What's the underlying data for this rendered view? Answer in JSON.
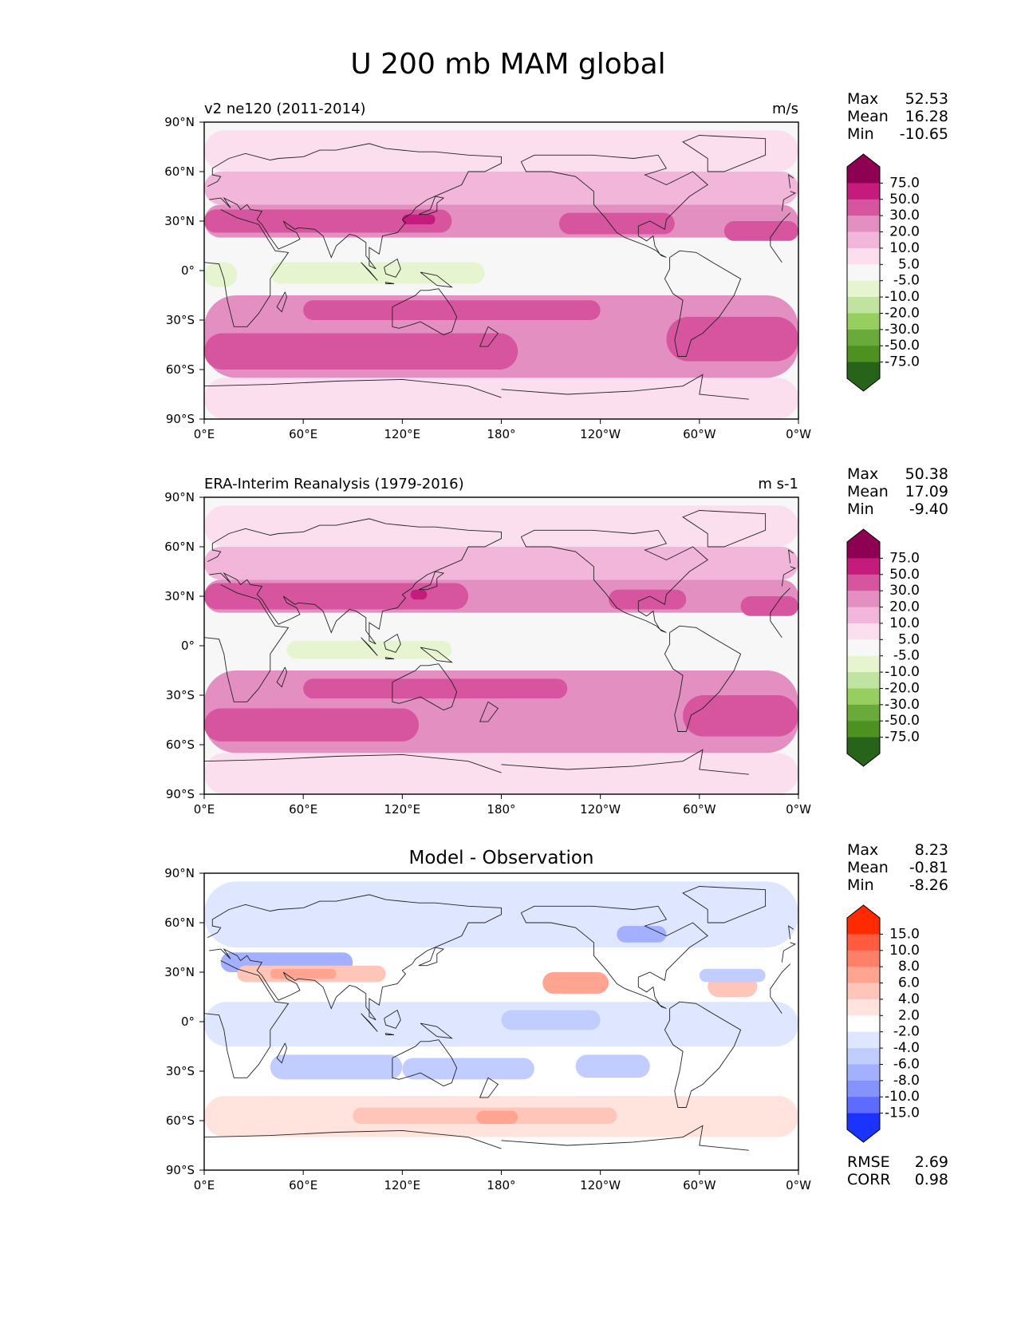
{
  "title": "U 200 mb MAM global",
  "chart_data": [
    {
      "type": "heatmap",
      "panel": "model",
      "left_title": "v2 ne120 (2011-2014)",
      "center_title": "",
      "units": "m/s",
      "stats": [
        {
          "label": "Max",
          "value": "52.53"
        },
        {
          "label": "Mean",
          "value": "16.28"
        },
        {
          "label": "Min",
          "value": "-10.65"
        }
      ],
      "colorbar_levels": [
        "75.0",
        "50.0",
        "30.0",
        "20.0",
        "10.0",
        "5.0",
        "-5.0",
        "-10.0",
        "-20.0",
        "-30.0",
        "-50.0",
        "-75.0"
      ],
      "colorbar_colors": [
        "#8e0152",
        "#c51b7d",
        "#d6559e",
        "#e48fc1",
        "#f1b6da",
        "#fbdfef",
        "#f7f7f7",
        "#e6f5d0",
        "#c0e3a0",
        "#96ce5f",
        "#6aaa3a",
        "#4d9221",
        "#276419"
      ],
      "field": [
        {
          "lat_min": 60,
          "lat_max": 85,
          "lon_min": 0,
          "lon_max": 360,
          "value": 8
        },
        {
          "lat_min": 40,
          "lat_max": 60,
          "lon_min": 0,
          "lon_max": 360,
          "value": 15
        },
        {
          "lat_min": 20,
          "lat_max": 40,
          "lon_min": 0,
          "lon_max": 360,
          "value": 25
        },
        {
          "lat_min": 23,
          "lat_max": 37,
          "lon_min": 0,
          "lon_max": 150,
          "value": 35
        },
        {
          "lat_min": 28,
          "lat_max": 34,
          "lon_min": 120,
          "lon_max": 140,
          "value": 55
        },
        {
          "lat_min": 22,
          "lat_max": 35,
          "lon_min": 215,
          "lon_max": 285,
          "value": 35
        },
        {
          "lat_min": 18,
          "lat_max": 30,
          "lon_min": 315,
          "lon_max": 360,
          "value": 35
        },
        {
          "lat_min": -5,
          "lat_max": 8,
          "lon_min": 0,
          "lon_max": 360,
          "value": 0
        },
        {
          "lat_min": -8,
          "lat_max": 5,
          "lon_min": 40,
          "lon_max": 170,
          "value": -7
        },
        {
          "lat_min": -10,
          "lat_max": 5,
          "lon_min": 0,
          "lon_max": 20,
          "value": -7
        },
        {
          "lat_min": -65,
          "lat_max": -15,
          "lon_min": 0,
          "lon_max": 360,
          "value": 25
        },
        {
          "lat_min": -30,
          "lat_max": -18,
          "lon_min": 60,
          "lon_max": 240,
          "value": 35
        },
        {
          "lat_min": -55,
          "lat_max": -28,
          "lon_min": 280,
          "lon_max": 360,
          "value": 35
        },
        {
          "lat_min": -60,
          "lat_max": -38,
          "lon_min": 0,
          "lon_max": 190,
          "value": 35
        },
        {
          "lat_min": -90,
          "lat_max": -65,
          "lon_min": 0,
          "lon_max": 360,
          "value": 8
        }
      ]
    },
    {
      "type": "heatmap",
      "panel": "observation",
      "left_title": "ERA-Interim Reanalysis (1979-2016)",
      "center_title": "",
      "units": "m s-1",
      "stats": [
        {
          "label": "Max",
          "value": "50.38"
        },
        {
          "label": "Mean",
          "value": "17.09"
        },
        {
          "label": "Min",
          "value": "-9.40"
        }
      ],
      "colorbar_levels": [
        "75.0",
        "50.0",
        "30.0",
        "20.0",
        "10.0",
        "5.0",
        "-5.0",
        "-10.0",
        "-20.0",
        "-30.0",
        "-50.0",
        "-75.0"
      ],
      "colorbar_colors": [
        "#8e0152",
        "#c51b7d",
        "#d6559e",
        "#e48fc1",
        "#f1b6da",
        "#fbdfef",
        "#f7f7f7",
        "#e6f5d0",
        "#c0e3a0",
        "#96ce5f",
        "#6aaa3a",
        "#4d9221",
        "#276419"
      ],
      "field": [
        {
          "lat_min": 60,
          "lat_max": 85,
          "lon_min": 0,
          "lon_max": 360,
          "value": 8
        },
        {
          "lat_min": 40,
          "lat_max": 60,
          "lon_min": 0,
          "lon_max": 360,
          "value": 15
        },
        {
          "lat_min": 20,
          "lat_max": 40,
          "lon_min": 0,
          "lon_max": 360,
          "value": 25
        },
        {
          "lat_min": 22,
          "lat_max": 38,
          "lon_min": 0,
          "lon_max": 160,
          "value": 35
        },
        {
          "lat_min": 28,
          "lat_max": 34,
          "lon_min": 125,
          "lon_max": 135,
          "value": 52
        },
        {
          "lat_min": 22,
          "lat_max": 34,
          "lon_min": 245,
          "lon_max": 292,
          "value": 35
        },
        {
          "lat_min": 18,
          "lat_max": 30,
          "lon_min": 325,
          "lon_max": 360,
          "value": 35
        },
        {
          "lat_min": -5,
          "lat_max": 8,
          "lon_min": 0,
          "lon_max": 360,
          "value": 0
        },
        {
          "lat_min": -8,
          "lat_max": 3,
          "lon_min": 50,
          "lon_max": 150,
          "value": -7
        },
        {
          "lat_min": -65,
          "lat_max": -15,
          "lon_min": 0,
          "lon_max": 360,
          "value": 25
        },
        {
          "lat_min": -32,
          "lat_max": -20,
          "lon_min": 60,
          "lon_max": 220,
          "value": 35
        },
        {
          "lat_min": -55,
          "lat_max": -30,
          "lon_min": 290,
          "lon_max": 360,
          "value": 35
        },
        {
          "lat_min": -58,
          "lat_max": -38,
          "lon_min": 0,
          "lon_max": 130,
          "value": 35
        },
        {
          "lat_min": -90,
          "lat_max": -65,
          "lon_min": 0,
          "lon_max": 360,
          "value": 8
        }
      ]
    },
    {
      "type": "heatmap",
      "panel": "difference",
      "left_title": "",
      "center_title": "Model - Observation",
      "units": "",
      "stats": [
        {
          "label": "Max",
          "value": "8.23"
        },
        {
          "label": "Mean",
          "value": "-0.81"
        },
        {
          "label": "Min",
          "value": "-8.26"
        }
      ],
      "extra_stats": [
        {
          "label": "RMSE",
          "value": "2.69"
        },
        {
          "label": "CORR",
          "value": "0.98"
        }
      ],
      "colorbar_levels": [
        "15.0",
        "10.0",
        "8.0",
        "6.0",
        "4.0",
        "2.0",
        "-2.0",
        "-4.0",
        "-6.0",
        "-8.0",
        "-10.0",
        "-15.0"
      ],
      "colorbar_colors": [
        "#ff2a00",
        "#ff5b3e",
        "#ff8068",
        "#ffa491",
        "#ffc5b8",
        "#ffe3dc",
        "#ffffff",
        "#dfe6ff",
        "#c2cdff",
        "#a3b0ff",
        "#8593ff",
        "#5d6bff",
        "#1a33ff"
      ],
      "field": [
        {
          "lat_min": 45,
          "lat_max": 85,
          "lon_min": 0,
          "lon_max": 360,
          "value": -3
        },
        {
          "lat_min": 30,
          "lat_max": 42,
          "lon_min": 10,
          "lon_max": 90,
          "value": -7
        },
        {
          "lat_min": 24,
          "lat_max": 34,
          "lon_min": 20,
          "lon_max": 110,
          "value": 4.5
        },
        {
          "lat_min": 26,
          "lat_max": 32,
          "lon_min": 40,
          "lon_max": 80,
          "value": 7
        },
        {
          "lat_min": 17,
          "lat_max": 30,
          "lon_min": 205,
          "lon_max": 245,
          "value": 6.5
        },
        {
          "lat_min": 15,
          "lat_max": 28,
          "lon_min": 305,
          "lon_max": 335,
          "value": 5
        },
        {
          "lat_min": 48,
          "lat_max": 58,
          "lon_min": 250,
          "lon_max": 280,
          "value": -7
        },
        {
          "lat_min": 24,
          "lat_max": 32,
          "lon_min": 300,
          "lon_max": 340,
          "value": -5
        },
        {
          "lat_min": -15,
          "lat_max": 12,
          "lon_min": 0,
          "lon_max": 360,
          "value": -2.5
        },
        {
          "lat_min": -5,
          "lat_max": 7,
          "lon_min": 180,
          "lon_max": 240,
          "value": -6
        },
        {
          "lat_min": -35,
          "lat_max": -20,
          "lon_min": 40,
          "lon_max": 120,
          "value": -6
        },
        {
          "lat_min": -35,
          "lat_max": -22,
          "lon_min": 120,
          "lon_max": 200,
          "value": -5
        },
        {
          "lat_min": -34,
          "lat_max": -20,
          "lon_min": 225,
          "lon_max": 270,
          "value": -6
        },
        {
          "lat_min": -70,
          "lat_max": -45,
          "lon_min": 0,
          "lon_max": 360,
          "value": 3
        },
        {
          "lat_min": -62,
          "lat_max": -52,
          "lon_min": 90,
          "lon_max": 250,
          "value": 5
        },
        {
          "lat_min": -62,
          "lat_max": -54,
          "lon_min": 165,
          "lon_max": 190,
          "value": 7
        }
      ]
    }
  ],
  "axes": {
    "x_ticks": [
      "0°E",
      "60°E",
      "120°E",
      "180°",
      "120°W",
      "60°W",
      "0°W"
    ],
    "y_ticks": [
      "90°N",
      "60°N",
      "30°N",
      "0°",
      "30°S",
      "60°S",
      "90°S"
    ],
    "xlim": [
      0,
      360
    ],
    "ylim": [
      -90,
      90
    ]
  }
}
